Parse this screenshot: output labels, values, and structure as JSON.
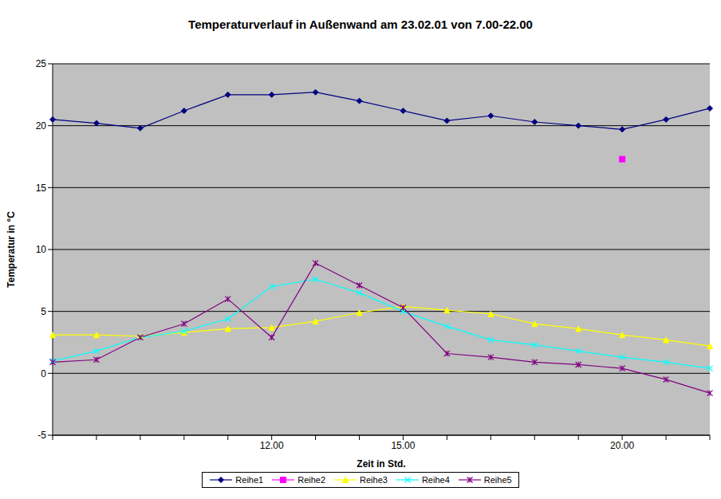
{
  "chart_data": {
    "type": "line",
    "title": "Temperaturverlauf in Außenwand am 23.02.01 von 7.00-22.00",
    "x_label": "Zeit in Std.",
    "y_label": "Temperatur in °C",
    "categories": [
      null,
      null,
      null,
      null,
      null,
      "12.00",
      null,
      null,
      "15.00",
      null,
      null,
      null,
      null,
      "20.00",
      null,
      null
    ],
    "series": [
      {
        "name": "Reihe1",
        "color": "#000080",
        "marker": "diamond",
        "values": [
          20.5,
          20.2,
          19.8,
          21.2,
          22.5,
          22.5,
          22.7,
          22.0,
          21.2,
          20.4,
          20.8,
          20.3,
          20.0,
          19.7,
          20.5,
          21.4
        ]
      },
      {
        "name": "Reihe2",
        "color": "#FF00FF",
        "marker": "square",
        "values": [
          null,
          null,
          null,
          null,
          null,
          null,
          null,
          null,
          null,
          null,
          null,
          null,
          null,
          17.3,
          null,
          null
        ]
      },
      {
        "name": "Reihe3",
        "color": "#FFFF00",
        "marker": "triangle",
        "values": [
          3.1,
          3.1,
          3.0,
          3.3,
          3.6,
          3.7,
          4.2,
          4.9,
          5.4,
          5.1,
          4.8,
          4.0,
          3.6,
          3.1,
          2.7,
          2.2
        ]
      },
      {
        "name": "Reihe4",
        "color": "#00FFFF",
        "marker": "x",
        "values": [
          1.0,
          1.8,
          2.9,
          3.4,
          4.4,
          7.0,
          7.6,
          6.5,
          5.0,
          3.8,
          2.7,
          2.3,
          1.8,
          1.3,
          0.9,
          0.4
        ]
      },
      {
        "name": "Reihe5",
        "color": "#800080",
        "marker": "star",
        "values": [
          0.9,
          1.1,
          2.9,
          4.0,
          6.0,
          2.9,
          8.9,
          7.1,
          5.3,
          1.6,
          1.3,
          0.9,
          0.7,
          0.4,
          -0.5,
          -1.6
        ]
      }
    ],
    "ylim": [
      -5,
      25
    ],
    "yticks": [
      -5,
      0,
      5,
      10,
      15,
      20,
      25
    ],
    "grid": true,
    "legend": "bottom"
  }
}
